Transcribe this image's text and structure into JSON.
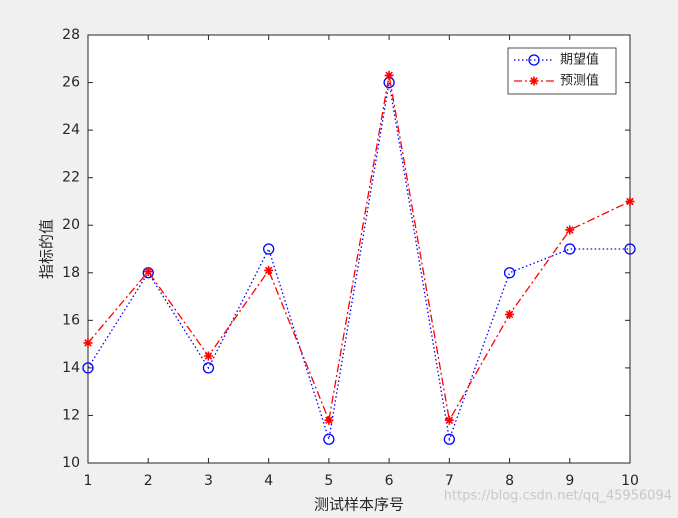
{
  "chart_data": {
    "type": "line",
    "x": [
      1,
      2,
      3,
      4,
      5,
      6,
      7,
      8,
      9,
      10
    ],
    "series": [
      {
        "name": "期望值",
        "color": "#0000ff",
        "line_style": "dotted",
        "marker": "o",
        "values": [
          14,
          18,
          14,
          19,
          11,
          26,
          11,
          18,
          19,
          19
        ]
      },
      {
        "name": "预测值",
        "color": "#ff0000",
        "line_style": "dashdot",
        "marker": "*",
        "values": [
          15.05,
          18.05,
          14.5,
          18.1,
          11.8,
          26.3,
          11.8,
          16.25,
          19.8,
          21
        ]
      }
    ],
    "xlabel": "测试样本序号",
    "ylabel": "指标的值",
    "xlim": [
      1,
      10
    ],
    "xticks": [
      1,
      2,
      3,
      4,
      5,
      6,
      7,
      8,
      9,
      10
    ],
    "ylim": [
      10,
      28
    ],
    "yticks": [
      10,
      12,
      14,
      16,
      18,
      20,
      22,
      24,
      26,
      28
    ],
    "grid": false,
    "legend": "northeast",
    "watermark": "https://blog.csdn.net/qq_45956094"
  }
}
